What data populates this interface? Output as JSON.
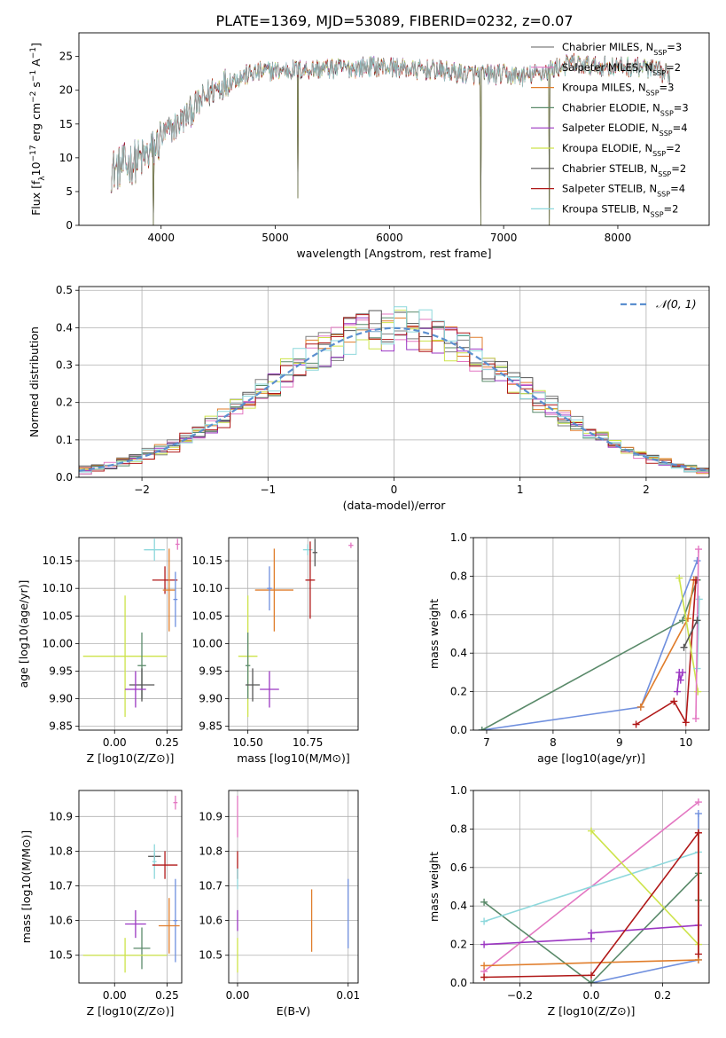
{
  "figure_title": "PLATE=1369, MJD=53089, FIBERID=0232, z=0.07",
  "colors": {
    "Chabrier MILES": "#7f7f7f",
    "Salpeter MILES": "#e377c2",
    "Kroupa MILES": "#e07d2b",
    "Chabrier ELODIE": "#5a8a6a",
    "Salpeter ELODIE": "#9b36c2",
    "Kroupa ELODIE": "#cde34a",
    "Chabrier STELIB": "#555555",
    "Salpeter STELIB": "#b01818",
    "Kroupa STELIB": "#8ed8dc",
    "blue": "#6f8fde",
    "gaussian": "#5b8fcf"
  },
  "chart_data": [
    {
      "id": "spectrum",
      "type": "line",
      "title": "PLATE=1369, MJD=53089, FIBERID=0232, z=0.07",
      "xlabel": "wavelength [Angstrom, rest frame]",
      "ylabel": "Flux [f_λ 10^-17 erg cm^-2 s^-1 A^-1]",
      "xlim": [
        3280,
        8800
      ],
      "ylim": [
        0,
        28.5
      ],
      "xticks": [
        4000,
        5000,
        6000,
        7000,
        8000
      ],
      "yticks": [
        0,
        5,
        10,
        15,
        20,
        25
      ],
      "legend": "upper-right",
      "legend_entries": [
        "Chabrier MILES, N_SSP=3",
        "Salpeter MILES, N_SSP=2",
        "Kroupa MILES, N_SSP=3",
        "Chabrier ELODIE, N_SSP=3",
        "Salpeter ELODIE, N_SSP=4",
        "Kroupa ELODIE, N_SSP=2",
        "Chabrier STELIB, N_SSP=2",
        "Salpeter STELIB, N_SSP=4",
        "Kroupa STELIB, N_SSP=2"
      ],
      "continuum": [
        [
          3550,
          8
        ],
        [
          3700,
          9
        ],
        [
          3850,
          10
        ],
        [
          3950,
          11.5
        ],
        [
          4000,
          13
        ],
        [
          4150,
          15
        ],
        [
          4300,
          17.5
        ],
        [
          4450,
          20
        ],
        [
          4600,
          21.5
        ],
        [
          4800,
          22.5
        ],
        [
          5000,
          23
        ],
        [
          5200,
          23
        ],
        [
          5400,
          23.2
        ],
        [
          5600,
          23.2
        ],
        [
          5800,
          23.5
        ],
        [
          6000,
          23.5
        ],
        [
          6200,
          23
        ],
        [
          6400,
          23
        ],
        [
          6600,
          22.5
        ],
        [
          6800,
          22.3
        ],
        [
          7000,
          22.3
        ],
        [
          7200,
          22
        ],
        [
          7400,
          23
        ],
        [
          7600,
          24
        ],
        [
          7800,
          23.5
        ],
        [
          8000,
          23.5
        ],
        [
          8200,
          23.5
        ],
        [
          8500,
          22
        ]
      ],
      "spikes_down": [
        [
          3930,
          0
        ],
        [
          5200,
          4
        ],
        [
          6800,
          0
        ],
        [
          7400,
          0
        ]
      ]
    },
    {
      "id": "residuals",
      "type": "histogram",
      "xlabel": "(data-model)/error",
      "ylabel": "Normed distribution",
      "xlim": [
        -2.5,
        2.5
      ],
      "ylim": [
        0,
        0.51
      ],
      "xticks": [
        -2,
        -1,
        0,
        1,
        2
      ],
      "yticks": [
        0.0,
        0.1,
        0.2,
        0.3,
        0.4,
        0.5
      ],
      "bin_width": 0.1,
      "legend_entries": [
        "𝒩(0, 1)"
      ],
      "legend": "upper-right"
    },
    {
      "id": "age-vs-Z",
      "type": "scatter",
      "xlabel": "Z [log10(Z/Z⊙)]",
      "ylabel": "age  [log10(age/yr)]",
      "xlim": [
        -0.17,
        0.32
      ],
      "ylim": [
        9.843,
        10.192
      ],
      "xticks": [
        0.0,
        0.25
      ],
      "yticks": [
        9.85,
        9.9,
        9.95,
        10.0,
        10.05,
        10.1,
        10.15
      ],
      "points": [
        {
          "c": "Kroupa STELIB",
          "x": 0.19,
          "y": 10.17,
          "ex": 0.05,
          "ey": 0.02
        },
        {
          "c": "Salpeter MILES",
          "x": 0.3,
          "y": 10.18,
          "ex": 0.01,
          "ey": 0.01
        },
        {
          "c": "Salpeter STELIB",
          "x": 0.24,
          "y": 10.115,
          "ex": 0.06,
          "ey": 0.025
        },
        {
          "c": "Kroupa MILES",
          "x": 0.26,
          "y": 10.097,
          "ex": 0.03,
          "ey": 0.075
        },
        {
          "c": "blue",
          "x": 0.29,
          "y": 10.08,
          "ex": 0.01,
          "ey": 0.05
        },
        {
          "c": "Kroupa ELODIE",
          "x": 0.05,
          "y": 9.977,
          "ex": 0.2,
          "ey": 0.11
        },
        {
          "c": "Chabrier ELODIE",
          "x": 0.13,
          "y": 9.96,
          "ex": 0.02,
          "ey": 0.06
        },
        {
          "c": "Chabrier STELIB",
          "x": 0.13,
          "y": 9.925,
          "ex": 0.06,
          "ey": 0.03
        },
        {
          "c": "Salpeter ELODIE",
          "x": 0.1,
          "y": 9.917,
          "ex": 0.05,
          "ey": 0.033
        }
      ]
    },
    {
      "id": "age-vs-mass",
      "type": "scatter",
      "xlabel": "mass [log10(M/M⊙)]",
      "ylabel": "",
      "xlim": [
        10.42,
        10.96
      ],
      "ylim": [
        9.843,
        10.192
      ],
      "xticks": [
        10.5,
        10.75
      ],
      "yticks": [
        9.85,
        9.9,
        9.95,
        10.0,
        10.05,
        10.1,
        10.15
      ],
      "points": [
        {
          "c": "Kroupa STELIB",
          "x": 10.75,
          "y": 10.17,
          "ex": 0.02,
          "ey": 0.01
        },
        {
          "c": "Chabrier STELIB",
          "x": 10.78,
          "y": 10.165,
          "ex": 0.01,
          "ey": 0.025
        },
        {
          "c": "Salpeter MILES",
          "x": 10.93,
          "y": 10.178,
          "ex": 0.01,
          "ey": 0.005
        },
        {
          "c": "Salpeter STELIB",
          "x": 10.76,
          "y": 10.115,
          "ex": 0.02,
          "ey": 0.07
        },
        {
          "c": "Kroupa MILES",
          "x": 10.61,
          "y": 10.097,
          "ex": 0.08,
          "ey": 0.075
        },
        {
          "c": "blue",
          "x": 10.59,
          "y": 10.1,
          "ex": 0.01,
          "ey": 0.04
        },
        {
          "c": "Kroupa ELODIE",
          "x": 10.5,
          "y": 9.977,
          "ex": 0.04,
          "ey": 0.11
        },
        {
          "c": "Chabrier ELODIE",
          "x": 10.5,
          "y": 9.96,
          "ex": 0.01,
          "ey": 0.06
        },
        {
          "c": "Chabrier STELIB",
          "x": 10.52,
          "y": 9.925,
          "ex": 0.03,
          "ey": 0.03
        },
        {
          "c": "Salpeter ELODIE",
          "x": 10.59,
          "y": 9.917,
          "ex": 0.04,
          "ey": 0.033
        }
      ]
    },
    {
      "id": "massweight-vs-age",
      "type": "line",
      "xlabel": "age  [log10(age/yr)]",
      "ylabel": "mass weight",
      "xlim": [
        6.8,
        10.35
      ],
      "ylim": [
        0,
        1.0
      ],
      "xticks": [
        7,
        8,
        9,
        10
      ],
      "yticks": [
        0.0,
        0.2,
        0.4,
        0.6,
        0.8,
        1.0
      ],
      "series": [
        {
          "c": "blue",
          "points": [
            [
              6.93,
              0.0
            ],
            [
              9.32,
              0.12
            ],
            [
              10.17,
              0.88
            ]
          ]
        },
        {
          "c": "Chabrier ELODIE",
          "points": [
            [
              6.93,
              0.0
            ],
            [
              9.95,
              0.57
            ],
            [
              10.17,
              0.78
            ]
          ]
        },
        {
          "c": "Kroupa MILES",
          "points": [
            [
              9.32,
              0.12
            ],
            [
              10.03,
              0.58
            ],
            [
              10.12,
              0.78
            ]
          ]
        },
        {
          "c": "Salpeter STELIB",
          "points": [
            [
              9.25,
              0.03
            ],
            [
              9.82,
              0.15
            ],
            [
              10.0,
              0.04
            ],
            [
              10.15,
              0.78
            ]
          ]
        },
        {
          "c": "Salpeter ELODIE",
          "points": [
            [
              9.87,
              0.2
            ],
            [
              9.9,
              0.3
            ],
            [
              9.92,
              0.26
            ],
            [
              9.95,
              0.3
            ]
          ]
        },
        {
          "c": "Kroupa ELODIE",
          "points": [
            [
              9.9,
              0.79
            ],
            [
              10.18,
              0.2
            ]
          ]
        },
        {
          "c": "Kroupa STELIB",
          "points": [
            [
              10.17,
              0.32
            ],
            [
              10.2,
              0.68
            ]
          ]
        },
        {
          "c": "Salpeter MILES",
          "points": [
            [
              10.15,
              0.06
            ],
            [
              10.19,
              0.94
            ]
          ]
        },
        {
          "c": "Chabrier STELIB",
          "points": [
            [
              9.97,
              0.43
            ],
            [
              10.17,
              0.57
            ]
          ]
        }
      ]
    },
    {
      "id": "mass-vs-Z",
      "type": "scatter",
      "xlabel": "Z [log10(Z/Z⊙)]",
      "ylabel": "mass [log10(M/M⊙)]",
      "xlim": [
        -0.17,
        0.32
      ],
      "ylim": [
        10.42,
        10.975
      ],
      "xticks": [
        0.0,
        0.25
      ],
      "yticks": [
        10.5,
        10.6,
        10.7,
        10.8,
        10.9
      ],
      "points": [
        {
          "c": "Salpeter MILES",
          "x": 0.29,
          "y": 10.94,
          "ex": 0.01,
          "ey": 0.02
        },
        {
          "c": "Chabrier STELIB",
          "x": 0.19,
          "y": 10.785,
          "ex": 0.03,
          "ey": 0.01
        },
        {
          "c": "Kroupa STELIB",
          "x": 0.19,
          "y": 10.77,
          "ex": 0.01,
          "ey": 0.05
        },
        {
          "c": "Salpeter STELIB",
          "x": 0.24,
          "y": 10.76,
          "ex": 0.06,
          "ey": 0.04
        },
        {
          "c": "blue",
          "x": 0.29,
          "y": 10.6,
          "ex": 0.01,
          "ey": 0.12
        },
        {
          "c": "Kroupa MILES",
          "x": 0.26,
          "y": 10.585,
          "ex": 0.05,
          "ey": 0.08
        },
        {
          "c": "Salpeter ELODIE",
          "x": 0.1,
          "y": 10.59,
          "ex": 0.05,
          "ey": 0.04
        },
        {
          "c": "Chabrier ELODIE",
          "x": 0.13,
          "y": 10.52,
          "ex": 0.04,
          "ey": 0.06
        },
        {
          "c": "Kroupa ELODIE",
          "x": 0.05,
          "y": 10.5,
          "ex": 0.2,
          "ey": 0.05
        }
      ]
    },
    {
      "id": "mass-vs-ebv",
      "type": "scatter",
      "xlabel": "E(B-V)",
      "ylabel": "",
      "xlim": [
        -0.0008,
        0.0109
      ],
      "ylim": [
        10.42,
        10.975
      ],
      "xticks": [
        0.0,
        0.01
      ],
      "yticks": [
        10.5,
        10.6,
        10.7,
        10.8,
        10.9
      ],
      "points": [
        {
          "c": "Salpeter MILES",
          "x": 0.0,
          "y": 10.9,
          "ex": 0.0,
          "ey": 0.06
        },
        {
          "c": "Salpeter STELIB",
          "x": 0.0,
          "y": 10.76,
          "ex": 0.0,
          "ey": 0.04
        },
        {
          "c": "Kroupa STELIB",
          "x": 0.0,
          "y": 10.72,
          "ex": 0.0,
          "ey": 0.03
        },
        {
          "c": "Salpeter ELODIE",
          "x": 0.0,
          "y": 10.6,
          "ex": 0.0,
          "ey": 0.03
        },
        {
          "c": "Kroupa ELODIE",
          "x": 0.0,
          "y": 10.5,
          "ex": 0.0,
          "ey": 0.05
        },
        {
          "c": "Kroupa MILES",
          "x": 0.0067,
          "y": 10.6,
          "ex": 0.0,
          "ey": 0.09
        },
        {
          "c": "blue",
          "x": 0.01,
          "y": 10.62,
          "ex": 0.0,
          "ey": 0.1
        }
      ]
    },
    {
      "id": "massweight-vs-Z",
      "type": "line",
      "xlabel": "Z [log10(Z/Z⊙)]",
      "ylabel": "mass weight",
      "xlim": [
        -0.33,
        0.33
      ],
      "ylim": [
        0,
        1.0
      ],
      "xticks": [
        -0.2,
        0.0,
        0.2
      ],
      "yticks": [
        0.0,
        0.2,
        0.4,
        0.6,
        0.8,
        1.0
      ],
      "series": [
        {
          "c": "Salpeter MILES",
          "points": [
            [
              -0.3,
              0.06
            ],
            [
              0.3,
              0.94
            ]
          ]
        },
        {
          "c": "blue",
          "points": [
            [
              0.0,
              0.0
            ],
            [
              0.3,
              0.12
            ],
            [
              0.3,
              0.88
            ]
          ]
        },
        {
          "c": "Chabrier ELODIE",
          "points": [
            [
              -0.3,
              0.42
            ],
            [
              0.0,
              0.0
            ],
            [
              0.3,
              0.57
            ],
            [
              0.3,
              0.43
            ]
          ]
        },
        {
          "c": "Kroupa STELIB",
          "points": [
            [
              -0.3,
              0.32
            ],
            [
              0.3,
              0.68
            ]
          ]
        },
        {
          "c": "Kroupa ELODIE",
          "points": [
            [
              0.0,
              0.79
            ],
            [
              0.3,
              0.2
            ]
          ]
        },
        {
          "c": "Salpeter ELODIE",
          "points": [
            [
              -0.3,
              0.2
            ],
            [
              0.0,
              0.23
            ],
            [
              0.0,
              0.26
            ],
            [
              0.3,
              0.3
            ]
          ]
        },
        {
          "c": "Kroupa MILES",
          "points": [
            [
              -0.3,
              0.09
            ],
            [
              0.3,
              0.12
            ],
            [
              0.3,
              0.78
            ]
          ]
        },
        {
          "c": "Salpeter STELIB",
          "points": [
            [
              -0.3,
              0.03
            ],
            [
              0.0,
              0.04
            ],
            [
              0.3,
              0.78
            ],
            [
              0.3,
              0.15
            ]
          ]
        }
      ]
    }
  ]
}
